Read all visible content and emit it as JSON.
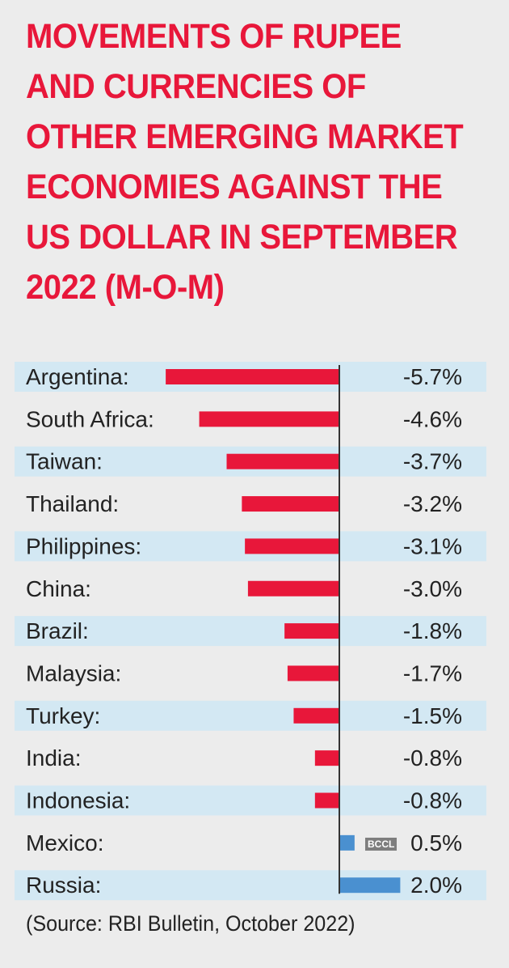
{
  "chart_data": {
    "type": "bar",
    "orientation": "horizontal",
    "title": "MOVEMENTS OF RUPEE AND CURRENCIES OF OTHER EMERGING MARKET ECONOMIES AGAINST THE US DOLLAR IN SEPTEMBER 2022 (M-O-M)",
    "categories": [
      "Argentina:",
      "South Africa:",
      "Taiwan:",
      "Thailand:",
      "Philippines:",
      "China:",
      "Brazil:",
      "Malaysia:",
      "Turkey:",
      "India:",
      "Indonesia:",
      "Mexico:",
      "Russia:"
    ],
    "values": [
      -5.7,
      -4.6,
      -3.7,
      -3.2,
      -3.1,
      -3.0,
      -1.8,
      -1.7,
      -1.5,
      -0.8,
      -0.8,
      0.5,
      2.0
    ],
    "data_labels": [
      "-5.7%",
      "-4.6%",
      "-3.7%",
      "-3.2%",
      "-3.1%",
      "-3.0%",
      "-1.8%",
      "-1.7%",
      "-1.5%",
      "-0.8%",
      "-0.8%",
      "0.5%",
      "2.0%"
    ],
    "unit": "%",
    "grid": false,
    "colors": {
      "negative": "#e8173a",
      "positive": "#4a90d0",
      "band": "#d3e8f3",
      "title": "#e8173a",
      "background": "#ececec"
    },
    "source": "(Source: RBI Bulletin, October 2022)"
  },
  "watermark": "BCCL"
}
